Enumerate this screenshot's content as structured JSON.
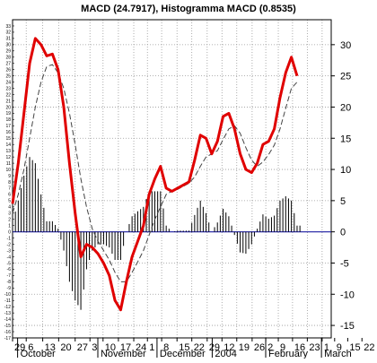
{
  "chart_data": {
    "type": "line",
    "title": "MACD (24.7917), Histogramma MACD (0.8535)",
    "ylim": [
      -17,
      34
    ],
    "right_axis_ticks": [
      30,
      25,
      20,
      15,
      10,
      5,
      0,
      -5,
      -10,
      -15
    ],
    "left_axis_ticks": [
      33,
      32,
      31,
      30,
      29,
      28,
      27,
      26,
      25,
      24,
      23,
      22,
      21,
      20,
      19,
      18,
      17,
      16,
      15,
      14,
      13,
      12,
      11,
      10,
      9,
      8,
      7,
      6,
      5,
      4,
      3,
      2,
      1,
      0,
      -1,
      -2,
      -3,
      -4,
      -5,
      -6,
      -7,
      -8,
      -9,
      -10,
      -11,
      -12,
      -13,
      -14,
      -15,
      -16,
      -17
    ],
    "x_range": [
      0,
      56
    ],
    "x_tick_labels": [
      {
        "i": 0,
        "label": "29"
      },
      {
        "i": 2.4,
        "label": "6"
      },
      {
        "i": 5.3,
        "label": "13"
      },
      {
        "i": 8.1,
        "label": "20"
      },
      {
        "i": 11,
        "label": "27"
      },
      {
        "i": 13.6,
        "label": "3"
      },
      {
        "i": 15.9,
        "label": "10"
      },
      {
        "i": 18.6,
        "label": "17"
      },
      {
        "i": 21.3,
        "label": "24"
      },
      {
        "i": 23.7,
        "label": "1"
      },
      {
        "i": 26.2,
        "label": "8"
      },
      {
        "i": 28.9,
        "label": "15"
      },
      {
        "i": 31.5,
        "label": "22"
      },
      {
        "i": 34.2,
        "label": "29"
      },
      {
        "i": 36.8,
        "label": "12"
      },
      {
        "i": 39.4,
        "label": "19"
      },
      {
        "i": 42.1,
        "label": "26"
      },
      {
        "i": 44.5,
        "label": "2"
      },
      {
        "i": 46.7,
        "label": "9"
      },
      {
        "i": 49.2,
        "label": "16"
      },
      {
        "i": 51.8,
        "label": "23"
      },
      {
        "i": 54.4,
        "label": "1"
      },
      {
        "i": 56.6,
        "label": "9"
      },
      {
        "i": 58.9,
        "label": "15"
      },
      {
        "i": 61.4,
        "label": "22"
      }
    ],
    "month_labels": [
      {
        "i": 1.2,
        "label": "October"
      },
      {
        "i": 15.3,
        "label": "November"
      },
      {
        "i": 25.7,
        "label": "December"
      },
      {
        "i": 35.4,
        "label": "2004"
      },
      {
        "i": 44.8,
        "label": "February"
      },
      {
        "i": 54.6,
        "label": "March"
      }
    ],
    "series": [
      {
        "role": "macd",
        "color": "#e00000",
        "values": [
          4.5,
          11,
          19,
          27,
          31,
          30,
          28.2,
          28.5,
          26,
          20,
          11,
          3,
          -4,
          -2,
          -2.5,
          -3.5,
          -5,
          -7,
          -11,
          -12.5,
          -8,
          -4,
          -1.5,
          1,
          6,
          8.5,
          10.5,
          7,
          6.5,
          7,
          7.5,
          8,
          11.5,
          15.5,
          15,
          12.5,
          14.5,
          18.5,
          19,
          16.5,
          12.5,
          10,
          9.5,
          11,
          14,
          14.5,
          16.5,
          21.5,
          25.5,
          28,
          25
        ]
      },
      {
        "role": "signal",
        "color": "#444444",
        "values": [
          3,
          6,
          10,
          15,
          20,
          24,
          26.5,
          26.8,
          25.5,
          23,
          19,
          14,
          8.5,
          4,
          0.5,
          -1.5,
          -3,
          -4.5,
          -6.5,
          -8,
          -8,
          -6.5,
          -4.8,
          -3,
          -0.5,
          2,
          4,
          6,
          6.5,
          6.8,
          7.3,
          7.8,
          8.8,
          10.5,
          12,
          12.5,
          13,
          14.8,
          16.5,
          17,
          15.8,
          13.5,
          11.5,
          10.5,
          11.2,
          12.4,
          13.9,
          16.5,
          19.8,
          23,
          24
        ]
      },
      {
        "role": "histogram",
        "color": "#000000",
        "values": [
          1.5,
          5,
          9,
          12,
          11,
          6,
          1.7,
          1.7,
          0.5,
          -3,
          -8,
          -11,
          -12.5,
          -6,
          -3,
          -2,
          -2,
          -2.5,
          -4.5,
          -4.5,
          0,
          2.5,
          3.3,
          4,
          6.5,
          6.5,
          6.5,
          1,
          0,
          0.2,
          0.2,
          0.2,
          2.7,
          5,
          3,
          0,
          1.5,
          3.7,
          2.5,
          -0.5,
          -3.3,
          -3.5,
          -2,
          0.5,
          2.8,
          2.1,
          2.6,
          5,
          5.7,
          5,
          1
        ]
      }
    ]
  }
}
